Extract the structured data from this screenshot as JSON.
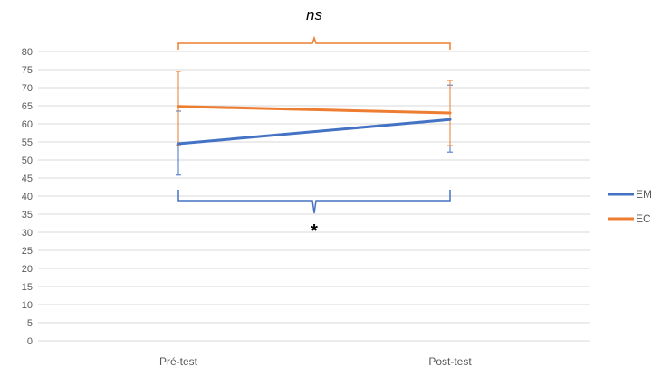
{
  "chart_data": {
    "type": "line",
    "categories": [
      "Pré-test",
      "Post-test"
    ],
    "series": [
      {
        "name": "EM",
        "values": [
          54.5,
          61.2
        ],
        "error_low": [
          45.8,
          52.2
        ],
        "error_high": [
          63.5,
          70.7
        ],
        "color": "#4472C4"
      },
      {
        "name": "EC",
        "values": [
          64.8,
          63.0
        ],
        "error_low": [
          54.2,
          54.0
        ],
        "error_high": [
          74.5,
          72.0
        ],
        "color": "#ED7D31"
      }
    ],
    "ylim": [
      0,
      80
    ],
    "yticks": [
      0,
      5,
      10,
      15,
      20,
      25,
      30,
      35,
      40,
      45,
      50,
      55,
      60,
      65,
      70,
      75,
      80
    ],
    "grid": true,
    "legend_position": "right",
    "annotations": [
      {
        "text": "ns",
        "series": "EC",
        "bracket": "top"
      },
      {
        "text": "*",
        "series": "EM",
        "bracket": "bottom"
      }
    ]
  }
}
